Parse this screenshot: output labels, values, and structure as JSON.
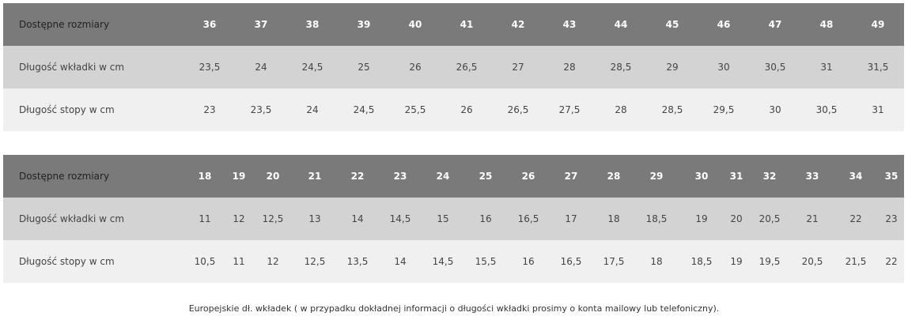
{
  "tables": [
    {
      "rows": [
        {
          "label": "Dostępne rozmiary",
          "values": [
            "36",
            "37",
            "38",
            "39",
            "40",
            "41",
            "42",
            "43",
            "44",
            "45",
            "46",
            "47",
            "48",
            "49"
          ]
        },
        {
          "label": "Długość wkładki w cm",
          "values": [
            "23,5",
            "24",
            "24,5",
            "25",
            "26",
            "26,5",
            "27",
            "28",
            "28,5",
            "29",
            "30",
            "30,5",
            "31",
            "31,5"
          ]
        },
        {
          "label": "Długość stopy w cm",
          "values": [
            "23",
            "23,5",
            "24",
            "24,5",
            "25,5",
            "26",
            "26,5",
            "27,5",
            "28",
            "28,5",
            "29,5",
            "30",
            "30,5",
            "31"
          ]
        }
      ]
    },
    {
      "rows": [
        {
          "label": "Dostępne rozmiary",
          "values": [
            "18",
            "19",
            "20",
            "21",
            "22",
            "23",
            "24",
            "25",
            "26",
            "27",
            "28",
            "29",
            "30",
            "31",
            "32",
            "33",
            "34",
            "35"
          ]
        },
        {
          "label": "Długość wkładki w cm",
          "values": [
            "11",
            "12",
            "12,5",
            "13",
            "14",
            "14,5",
            "15",
            "16",
            "16,5",
            "17",
            "18",
            "18,5",
            "19",
            "20",
            "20,5",
            "21",
            "22",
            "23"
          ]
        },
        {
          "label": "Długość stopy w cm",
          "values": [
            "10,5",
            "11",
            "12",
            "12,5",
            "13,5",
            "14",
            "14,5",
            "15,5",
            "16",
            "16,5",
            "17,5",
            "18",
            "18,5",
            "19",
            "19,5",
            "20,5",
            "21,5",
            "22"
          ]
        }
      ]
    }
  ],
  "footer": "Europejskie dł. wkładek ( w przypadku dokładnej informacji o długości wkładki prosimy o konta mailowy lub telefoniczny).",
  "colors": {
    "header_bg": "#7a7a7a",
    "row1_bg": "#d3d3d3",
    "row2_bg": "#f0f0f0"
  }
}
